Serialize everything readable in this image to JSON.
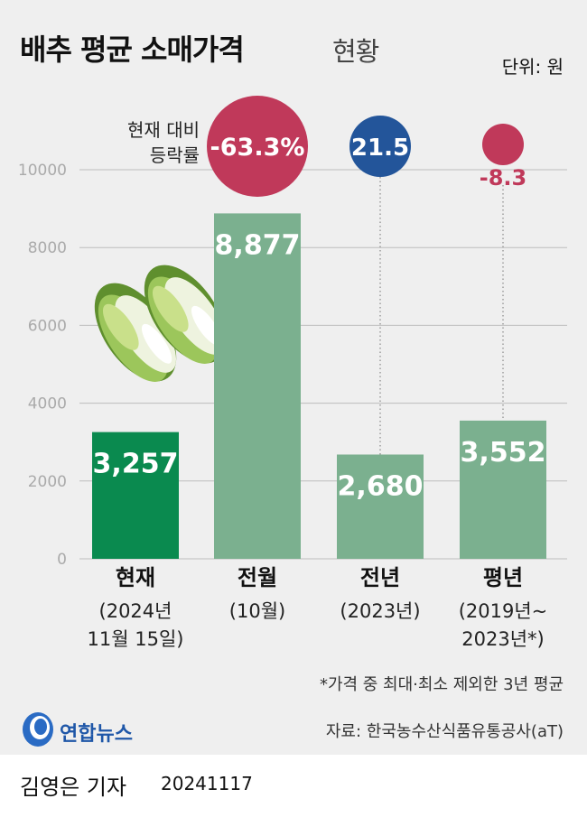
{
  "header": {
    "title_main": "배추 평균 소매가격",
    "title_sub": "현황",
    "unit": "단위: 원"
  },
  "legend_label": "현재 대비\n등락률",
  "note": "*가격 중 최대·최소 제외한 3년 평균",
  "source": "자료: 한국농수산식품유통공사(aT)",
  "footer": {
    "logo_text": "연합뉴스",
    "reporter": "김영은 기자",
    "date": "20241117"
  },
  "colors": {
    "current_bar": "#0a8a4f",
    "other_bar": "#7bb08f",
    "decline": "#c0395a",
    "increase": "#23559a",
    "panel": "#efefef",
    "grid": "#bdbdbd"
  },
  "chart_data": {
    "type": "bar",
    "categories": [
      "현재",
      "전월",
      "전년",
      "평년"
    ],
    "category_sublabels": [
      [
        "(2024년",
        "11월 15일)"
      ],
      [
        "(10월)"
      ],
      [
        "(2023년)"
      ],
      [
        "(2019년~",
        "2023년*)"
      ]
    ],
    "values": [
      3257,
      8877,
      2680,
      3552
    ],
    "value_labels": [
      "3,257",
      "8,877",
      "2,680",
      "3,552"
    ],
    "change_rate_labels": [
      "",
      "-63.3%",
      "21.5",
      "-8.3"
    ],
    "change_rates": [
      null,
      -63.3,
      21.5,
      -8.3
    ],
    "ylim": [
      0,
      10000
    ],
    "yticks": [
      0,
      2000,
      4000,
      6000,
      8000,
      10000
    ],
    "ytick_labels": [
      "0",
      "2000",
      "4000",
      "6000",
      "8000",
      "10000"
    ],
    "grid": true,
    "title": "",
    "xlabel": "",
    "ylabel": ""
  }
}
